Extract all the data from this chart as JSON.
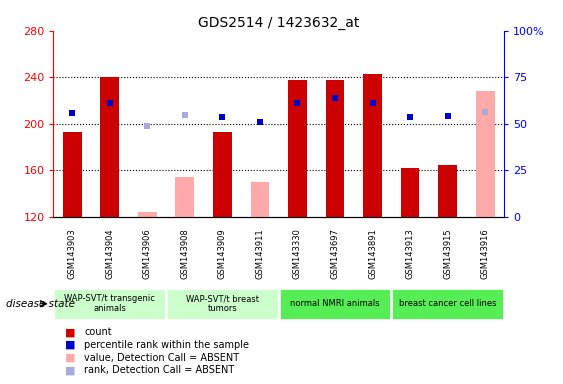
{
  "title": "GDS2514 / 1423632_at",
  "samples": [
    "GSM143903",
    "GSM143904",
    "GSM143906",
    "GSM143908",
    "GSM143909",
    "GSM143911",
    "GSM143330",
    "GSM143697",
    "GSM143891",
    "GSM143913",
    "GSM143915",
    "GSM143916"
  ],
  "count_values": [
    193,
    240,
    null,
    null,
    193,
    null,
    238,
    238,
    243,
    162,
    165,
    null
  ],
  "count_absent": [
    null,
    null,
    124,
    154,
    null,
    150,
    null,
    null,
    null,
    null,
    null,
    228
  ],
  "percentile_values": [
    209,
    218,
    null,
    null,
    206,
    202,
    218,
    222,
    218,
    206,
    207,
    null
  ],
  "percentile_absent": [
    null,
    null,
    198,
    208,
    null,
    null,
    null,
    null,
    null,
    null,
    null,
    210
  ],
  "ylim": [
    120,
    280
  ],
  "y2lim": [
    0,
    100
  ],
  "yticks": [
    120,
    160,
    200,
    240,
    280
  ],
  "y2ticks": [
    0,
    25,
    50,
    75,
    100
  ],
  "groups": [
    {
      "label": "WAP-SVT/t transgenic\nanimals",
      "start": 0,
      "end": 3,
      "color": "#ccffcc"
    },
    {
      "label": "WAP-SVT/t breast\ntumors",
      "start": 3,
      "end": 6,
      "color": "#ccffcc"
    },
    {
      "label": "normal NMRI animals",
      "start": 6,
      "end": 9,
      "color": "#55ee55"
    },
    {
      "label": "breast cancer cell lines",
      "start": 9,
      "end": 12,
      "color": "#55ee55"
    }
  ],
  "disease_state_label": "disease state",
  "count_color": "#cc0000",
  "count_absent_color": "#ffaaaa",
  "percentile_color": "#0000cc",
  "percentile_absent_color": "#aaaadd",
  "bar_width": 0.5,
  "marker_size": 5,
  "background_color": "#ffffff",
  "axis_bg_color": "#ffffff",
  "sample_bg_color": "#d8d8d8",
  "legend_items": [
    {
      "color": "#cc0000",
      "label": "count"
    },
    {
      "color": "#0000cc",
      "label": "percentile rank within the sample"
    },
    {
      "color": "#ffaaaa",
      "label": "value, Detection Call = ABSENT"
    },
    {
      "color": "#aaaadd",
      "label": "rank, Detection Call = ABSENT"
    }
  ]
}
